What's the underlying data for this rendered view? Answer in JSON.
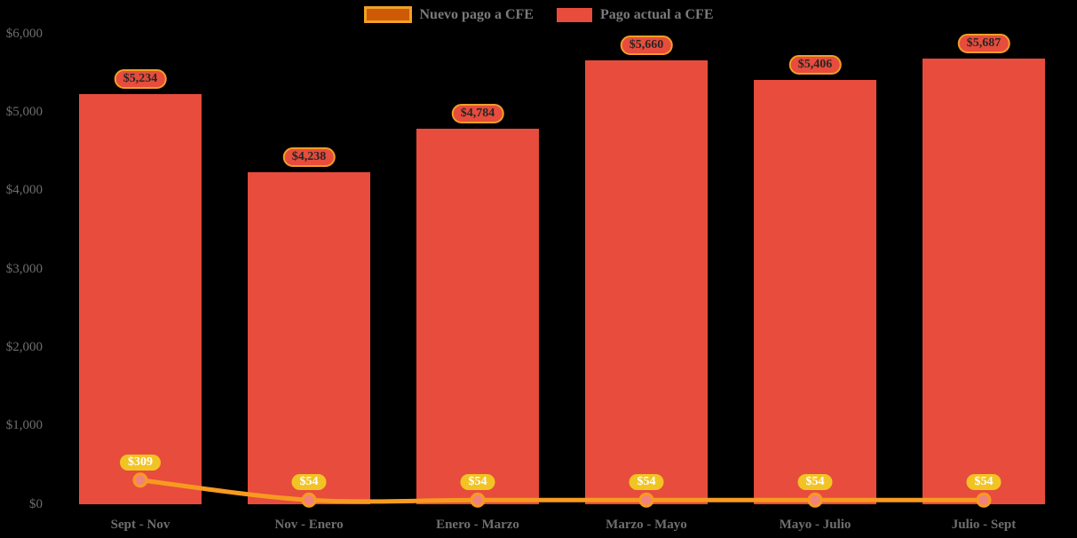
{
  "legend": {
    "items": [
      {
        "label": "Nuevo pago a CFE",
        "series_type": "line"
      },
      {
        "label": "Pago actual a CFE",
        "series_type": "bar"
      }
    ]
  },
  "colors": {
    "background": "#000000",
    "bar": "#E74C3C",
    "line": "#F79B20",
    "line_swatch_fill": "#CE5A07",
    "line_swatch_border": "#F0A125",
    "marker_fill": "#F0837B",
    "bar_badge_bg": "#E74C3C",
    "bar_badge_border": "#F29D26",
    "bar_badge_text": "#262626",
    "line_badge_bg": "#F2C423",
    "line_badge_text": "#FFFFFF",
    "axis_text": "#6E6E6E",
    "legend_text": "#7A7A7A"
  },
  "chart_data": {
    "type": "bar",
    "subtype": "bar-with-line-overlay",
    "categories": [
      "Sept - Nov",
      "Nov - Enero",
      "Enero - Marzo",
      "Marzo - Mayo",
      "Mayo - Julio",
      "Julio - Sept"
    ],
    "series": [
      {
        "name": "Pago actual a CFE",
        "type": "bar",
        "values": [
          5234,
          4238,
          4784,
          5660,
          5406,
          5687
        ],
        "labels": [
          "$5,234",
          "$4,238",
          "$4,784",
          "$5,660",
          "$5,406",
          "$5,687"
        ]
      },
      {
        "name": "Nuevo pago a CFE",
        "type": "line",
        "values": [
          309,
          54,
          54,
          54,
          54,
          54
        ],
        "labels": [
          "$309",
          "$54",
          "$54",
          "$54",
          "$54",
          "$54"
        ]
      }
    ],
    "title": "",
    "xlabel": "",
    "ylabel": "",
    "ylim": [
      0,
      6000
    ],
    "y_ticks": [
      {
        "value": 0,
        "label": "$0"
      },
      {
        "value": 1000,
        "label": "$1,000"
      },
      {
        "value": 2000,
        "label": "$2,000"
      },
      {
        "value": 3000,
        "label": "$3,000"
      },
      {
        "value": 4000,
        "label": "$4,000"
      },
      {
        "value": 5000,
        "label": "$5,000"
      },
      {
        "value": 6000,
        "label": "$6,000"
      }
    ],
    "grid": false,
    "legend_position": "top-center"
  }
}
